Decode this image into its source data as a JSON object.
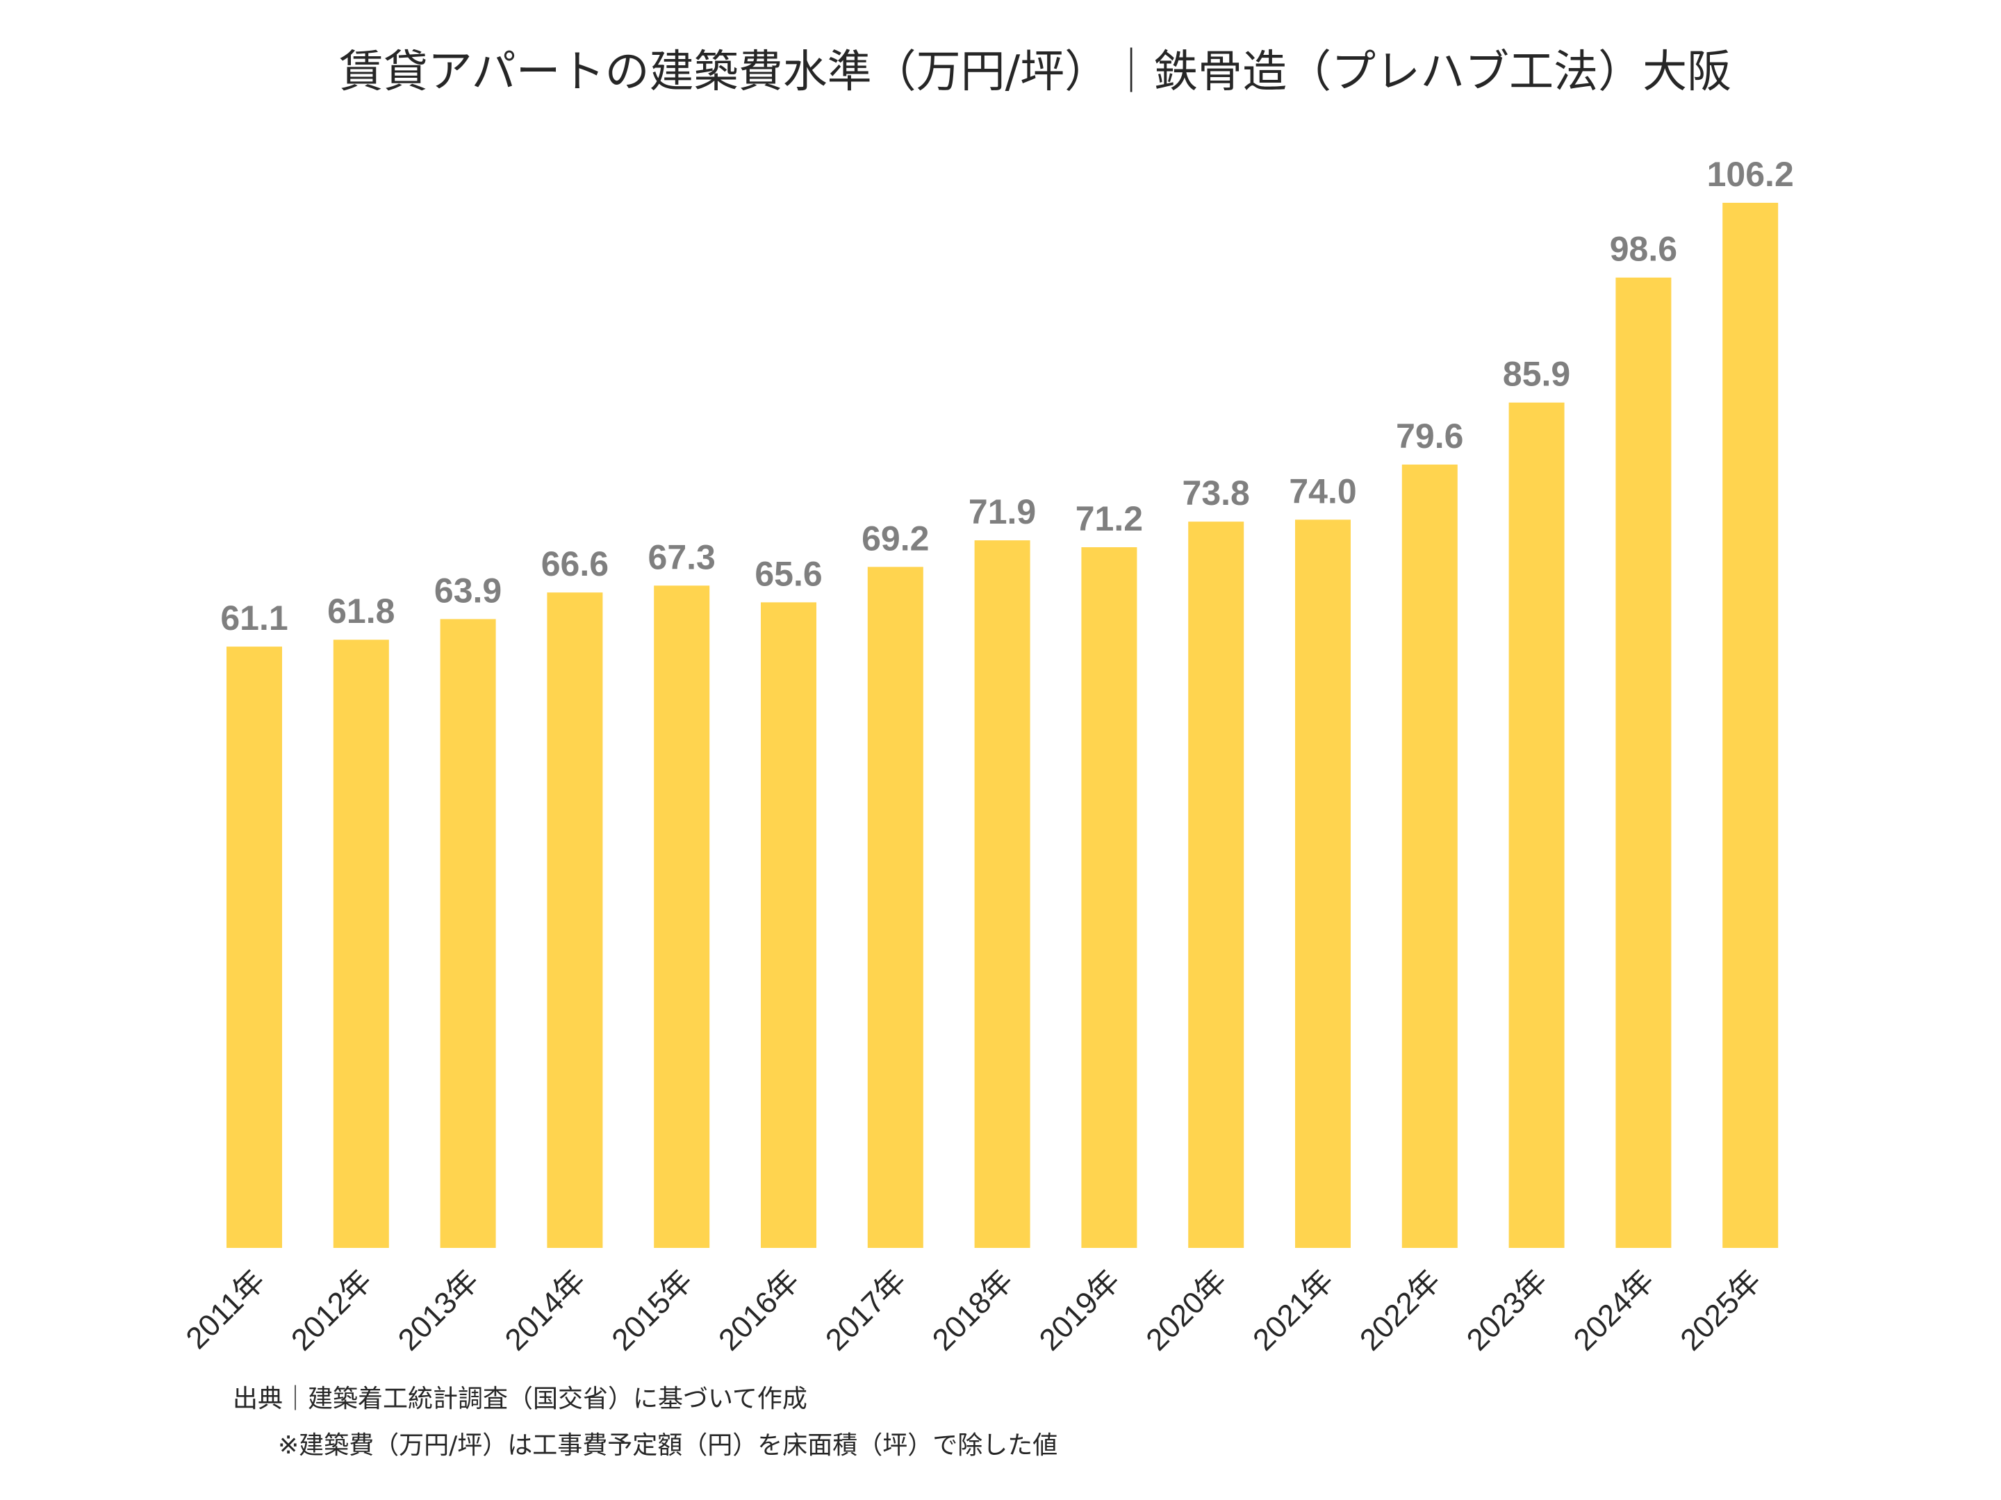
{
  "chart_data": {
    "type": "bar",
    "title": "賃貸アパートの建築費水準（万円/坪）｜鉄骨造（プレハブ工法）大阪",
    "categories": [
      "2011年",
      "2012年",
      "2013年",
      "2014年",
      "2015年",
      "2016年",
      "2017年",
      "2018年",
      "2019年",
      "2020年",
      "2021年",
      "2022年",
      "2023年",
      "2024年",
      "2025年"
    ],
    "values": [
      61.1,
      61.8,
      63.9,
      66.6,
      67.3,
      65.6,
      69.2,
      71.9,
      71.2,
      73.8,
      74.0,
      79.6,
      85.9,
      98.6,
      106.2
    ],
    "value_labels": [
      "61.1",
      "61.8",
      "63.9",
      "66.6",
      "67.3",
      "65.6",
      "69.2",
      "71.9",
      "71.2",
      "73.8",
      "74.0",
      "79.6",
      "85.9",
      "98.6",
      "106.2"
    ],
    "xlabel": "",
    "ylabel": "",
    "ylim": [
      0,
      106.2
    ],
    "grid": false,
    "legend": "none",
    "colors": {
      "bar": "#FFD44F",
      "data_label": "#7F7F7F",
      "text": "#262626"
    }
  },
  "notes": {
    "source": "出典｜建築着工統計調査（国交省）に基づいて作成",
    "definition": "※建築費（万円/坪）は工事費予定額（円）を床面積（坪）で除した値"
  }
}
